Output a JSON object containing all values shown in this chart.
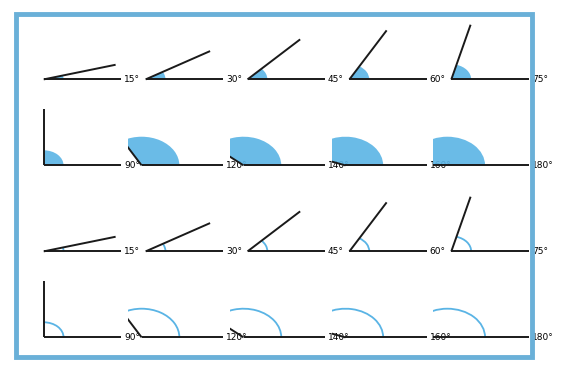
{
  "angles_row1": [
    15,
    30,
    45,
    60,
    75
  ],
  "angles_row2": [
    90,
    120,
    140,
    160,
    180
  ],
  "angles_row3": [
    15,
    30,
    45,
    60,
    75
  ],
  "angles_row4": [
    90,
    120,
    140,
    160,
    180
  ],
  "fill_color": "#5ab4e5",
  "fill_alpha": 0.9,
  "line_color": "#1a1a1a",
  "arc_color_outline": "#5ab4e5",
  "background": "#ffffff",
  "border_color": "#6ab0d8",
  "label_fontsize": 6.5,
  "line_width": 1.4
}
